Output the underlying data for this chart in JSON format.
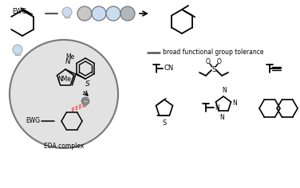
{
  "bg_color": "#ffffff",
  "eda_circle_bg": "#e2e2e2",
  "eda_circle_edge": "#777777",
  "light_blue": "#c8ddf0",
  "mid_gray": "#888888",
  "dark_gray": "#555555",
  "circle_gray": "#9aacb8",
  "circle_blue": "#a8c4d8",
  "broad_text": "broad functional group tolerance",
  "ewg_text": "EWG",
  "eda_text": "EDA complex",
  "me_text": "Me",
  "nme_text": "NMe",
  "s_text": "S",
  "n_text": "N",
  "ewg2_text": "EWG",
  "cn_text": "CN",
  "font_size_small": 5.5,
  "font_size_med": 6.5,
  "font_size_large": 7.5
}
